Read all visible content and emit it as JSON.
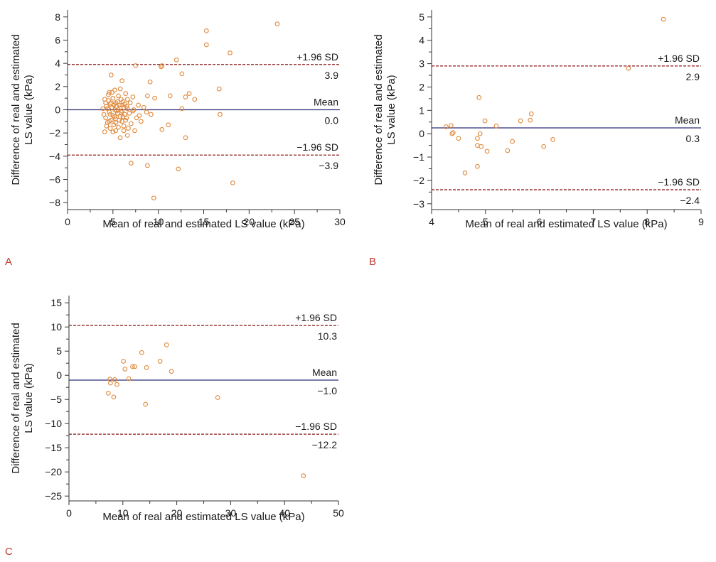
{
  "chart_data": [
    {
      "type": "scatter",
      "panel_label": "A",
      "xlabel": "Mean of real and estimated LS value (kPa)",
      "ylabel": [
        "Difference of real and estimated",
        "LS value (kPa)"
      ],
      "xlim": [
        0,
        30
      ],
      "ylim": [
        -8.6,
        8.6
      ],
      "xticks": [
        0,
        5,
        10,
        15,
        20,
        25,
        30
      ],
      "yticks": [
        -8,
        -6,
        -4,
        -2,
        0,
        2,
        4,
        6,
        8
      ],
      "reference_lines": [
        {
          "name": "+1.96 SD",
          "value": 3.9,
          "value_label": "3.9",
          "style": "dashed",
          "color": "#8b1a1a"
        },
        {
          "name": "Mean",
          "value": 0.0,
          "value_label": "0.0",
          "style": "solid",
          "color": "#2c2c7a"
        },
        {
          "name": "−1.96 SD",
          "value": -3.9,
          "value_label": "−3.9",
          "style": "dashed",
          "color": "#8b1a1a"
        }
      ],
      "points": [
        [
          23.1,
          7.4
        ],
        [
          15.3,
          6.8
        ],
        [
          15.3,
          5.6
        ],
        [
          17.9,
          4.9
        ],
        [
          12.0,
          4.3
        ],
        [
          10.4,
          3.8
        ],
        [
          10.3,
          3.7
        ],
        [
          7.5,
          3.8
        ],
        [
          12.6,
          3.1
        ],
        [
          4.8,
          3.0
        ],
        [
          9.1,
          2.4
        ],
        [
          6.0,
          2.5
        ],
        [
          16.7,
          1.8
        ],
        [
          13.4,
          1.4
        ],
        [
          11.3,
          1.2
        ],
        [
          13.0,
          1.1
        ],
        [
          14.0,
          0.9
        ],
        [
          9.6,
          1.0
        ],
        [
          8.8,
          1.2
        ],
        [
          7.2,
          1.1
        ],
        [
          6.6,
          0.9
        ],
        [
          5.2,
          1.7
        ],
        [
          4.6,
          1.5
        ],
        [
          4.2,
          0.6
        ],
        [
          12.6,
          0.1
        ],
        [
          16.8,
          -0.4
        ],
        [
          9.2,
          -0.4
        ],
        [
          8.7,
          -0.2
        ],
        [
          7.9,
          -0.5
        ],
        [
          7.2,
          -0.1
        ],
        [
          7.0,
          -1.2
        ],
        [
          6.2,
          -1.4
        ],
        [
          5.3,
          -1.8
        ],
        [
          4.7,
          -1.6
        ],
        [
          4.1,
          -1.9
        ],
        [
          11.1,
          -1.3
        ],
        [
          10.4,
          -1.7
        ],
        [
          13.0,
          -2.4
        ],
        [
          6.6,
          -2.2
        ],
        [
          5.8,
          -2.4
        ],
        [
          7.0,
          -4.6
        ],
        [
          8.8,
          -4.8
        ],
        [
          12.2,
          -5.1
        ],
        [
          18.2,
          -6.3
        ],
        [
          9.5,
          -7.6
        ],
        [
          3.9,
          0.1
        ],
        [
          4.0,
          -0.4
        ],
        [
          4.2,
          -0.7
        ],
        [
          4.3,
          0.3
        ],
        [
          4.4,
          -1.1
        ],
        [
          4.5,
          0.8
        ],
        [
          4.6,
          -0.2
        ],
        [
          4.7,
          0.5
        ],
        [
          4.8,
          -0.9
        ],
        [
          4.9,
          0.2
        ],
        [
          5.0,
          -0.5
        ],
        [
          5.0,
          1.0
        ],
        [
          5.1,
          -1.3
        ],
        [
          5.2,
          0.0
        ],
        [
          5.3,
          0.6
        ],
        [
          5.3,
          -0.8
        ],
        [
          5.4,
          0.3
        ],
        [
          5.5,
          -0.3
        ],
        [
          5.6,
          1.2
        ],
        [
          5.6,
          -1.5
        ],
        [
          5.7,
          0.4
        ],
        [
          5.8,
          -0.6
        ],
        [
          5.9,
          0.9
        ],
        [
          6.0,
          -0.1
        ],
        [
          6.0,
          -1.0
        ],
        [
          6.1,
          0.7
        ],
        [
          6.2,
          0.2
        ],
        [
          6.3,
          -0.4
        ],
        [
          6.4,
          1.4
        ],
        [
          6.5,
          -0.7
        ],
        [
          6.6,
          0.1
        ],
        [
          6.8,
          -0.3
        ],
        [
          4.1,
          0.9
        ],
        [
          4.3,
          -1.4
        ],
        [
          4.5,
          1.3
        ],
        [
          4.7,
          -0.4
        ],
        [
          4.9,
          1.5
        ],
        [
          5.1,
          0.4
        ],
        [
          5.3,
          -1.1
        ],
        [
          5.5,
          0.7
        ],
        [
          5.7,
          -0.9
        ],
        [
          5.9,
          -0.2
        ],
        [
          6.1,
          -0.6
        ],
        [
          6.3,
          0.5
        ],
        [
          6.5,
          0.3
        ],
        [
          6.7,
          -1.6
        ],
        [
          6.9,
          0.6
        ],
        [
          7.3,
          0.0
        ],
        [
          7.6,
          -0.7
        ],
        [
          7.8,
          0.4
        ],
        [
          8.1,
          -1.0
        ],
        [
          8.4,
          0.2
        ],
        [
          7.4,
          -1.8
        ],
        [
          4.4,
          0.1
        ],
        [
          4.6,
          -1.0
        ],
        [
          5.0,
          -1.9
        ],
        [
          5.8,
          1.8
        ],
        [
          6.2,
          -1.8
        ],
        [
          5.4,
          -0.1
        ],
        [
          4.8,
          0.6
        ],
        [
          5.2,
          -0.6
        ],
        [
          5.6,
          0.0
        ],
        [
          6.0,
          0.4
        ],
        [
          6.4,
          -0.9
        ]
      ]
    },
    {
      "type": "scatter",
      "panel_label": "B",
      "xlabel": "Mean of real and estimated LS value (kPa)",
      "ylabel": [
        "Difference of real and estimated",
        "LS value (kPa)"
      ],
      "xlim": [
        4,
        9
      ],
      "ylim": [
        -3.25,
        5.3
      ],
      "xticks": [
        4,
        5,
        6,
        7,
        8,
        9
      ],
      "yticks": [
        -3,
        -2,
        -1,
        0,
        1,
        2,
        3,
        4,
        5
      ],
      "reference_lines": [
        {
          "name": "+1.96 SD",
          "value": 2.9,
          "value_label": "2.9",
          "style": "dashed",
          "color": "#8b1a1a"
        },
        {
          "name": "Mean",
          "value": 0.25,
          "value_label": "0.3",
          "style": "solid",
          "color": "#2c2c7a"
        },
        {
          "name": "−1.96 SD",
          "value": -2.4,
          "value_label": "−2.4",
          "style": "dashed",
          "color": "#8b1a1a"
        }
      ],
      "points": [
        [
          8.3,
          4.9
        ],
        [
          7.65,
          2.8
        ],
        [
          4.88,
          1.55
        ],
        [
          4.99,
          0.55
        ],
        [
          5.2,
          0.33
        ],
        [
          5.85,
          0.85
        ],
        [
          5.83,
          0.58
        ],
        [
          5.65,
          0.55
        ],
        [
          4.27,
          0.3
        ],
        [
          4.36,
          0.35
        ],
        [
          4.4,
          0.05
        ],
        [
          4.38,
          0.0
        ],
        [
          4.5,
          -0.2
        ],
        [
          4.9,
          0.0
        ],
        [
          4.85,
          -0.2
        ],
        [
          4.85,
          -0.5
        ],
        [
          4.92,
          -0.55
        ],
        [
          5.03,
          -0.75
        ],
        [
          5.41,
          -0.72
        ],
        [
          5.5,
          -0.33
        ],
        [
          6.25,
          -0.25
        ],
        [
          6.08,
          -0.55
        ],
        [
          4.85,
          -1.4
        ],
        [
          4.62,
          -1.68
        ]
      ]
    },
    {
      "type": "scatter",
      "panel_label": "C",
      "xlabel": "Mean of real and estimated LS value (kPa)",
      "ylabel": [
        "Difference of real and estimated",
        "LS value (kPa)"
      ],
      "xlim": [
        0,
        50
      ],
      "ylim": [
        -26,
        16.5
      ],
      "xticks": [
        0,
        10,
        20,
        30,
        40,
        50
      ],
      "yticks": [
        -25,
        -20,
        -15,
        -10,
        -5,
        0,
        5,
        10,
        15
      ],
      "reference_lines": [
        {
          "name": "+1.96 SD",
          "value": 10.3,
          "value_label": "10.3",
          "style": "dashed",
          "color": "#8b1a1a"
        },
        {
          "name": "Mean",
          "value": -1.0,
          "value_label": "−1.0",
          "style": "solid",
          "color": "#2c2c7a"
        },
        {
          "name": "−1.96 SD",
          "value": -12.2,
          "value_label": "−12.2",
          "style": "dashed",
          "color": "#8b1a1a"
        }
      ],
      "points": [
        [
          18.1,
          6.3
        ],
        [
          13.5,
          4.7
        ],
        [
          10.1,
          2.9
        ],
        [
          11.8,
          1.8
        ],
        [
          12.2,
          1.8
        ],
        [
          16.9,
          2.9
        ],
        [
          14.4,
          1.6
        ],
        [
          10.4,
          1.3
        ],
        [
          19.0,
          0.8
        ],
        [
          11.1,
          -0.7
        ],
        [
          7.6,
          -0.8
        ],
        [
          8.5,
          -0.9
        ],
        [
          7.7,
          -1.6
        ],
        [
          8.9,
          -1.9
        ],
        [
          7.3,
          -3.7
        ],
        [
          8.3,
          -4.5
        ],
        [
          27.6,
          -4.6
        ],
        [
          14.2,
          -6.0
        ],
        [
          43.5,
          -20.8
        ]
      ]
    }
  ]
}
